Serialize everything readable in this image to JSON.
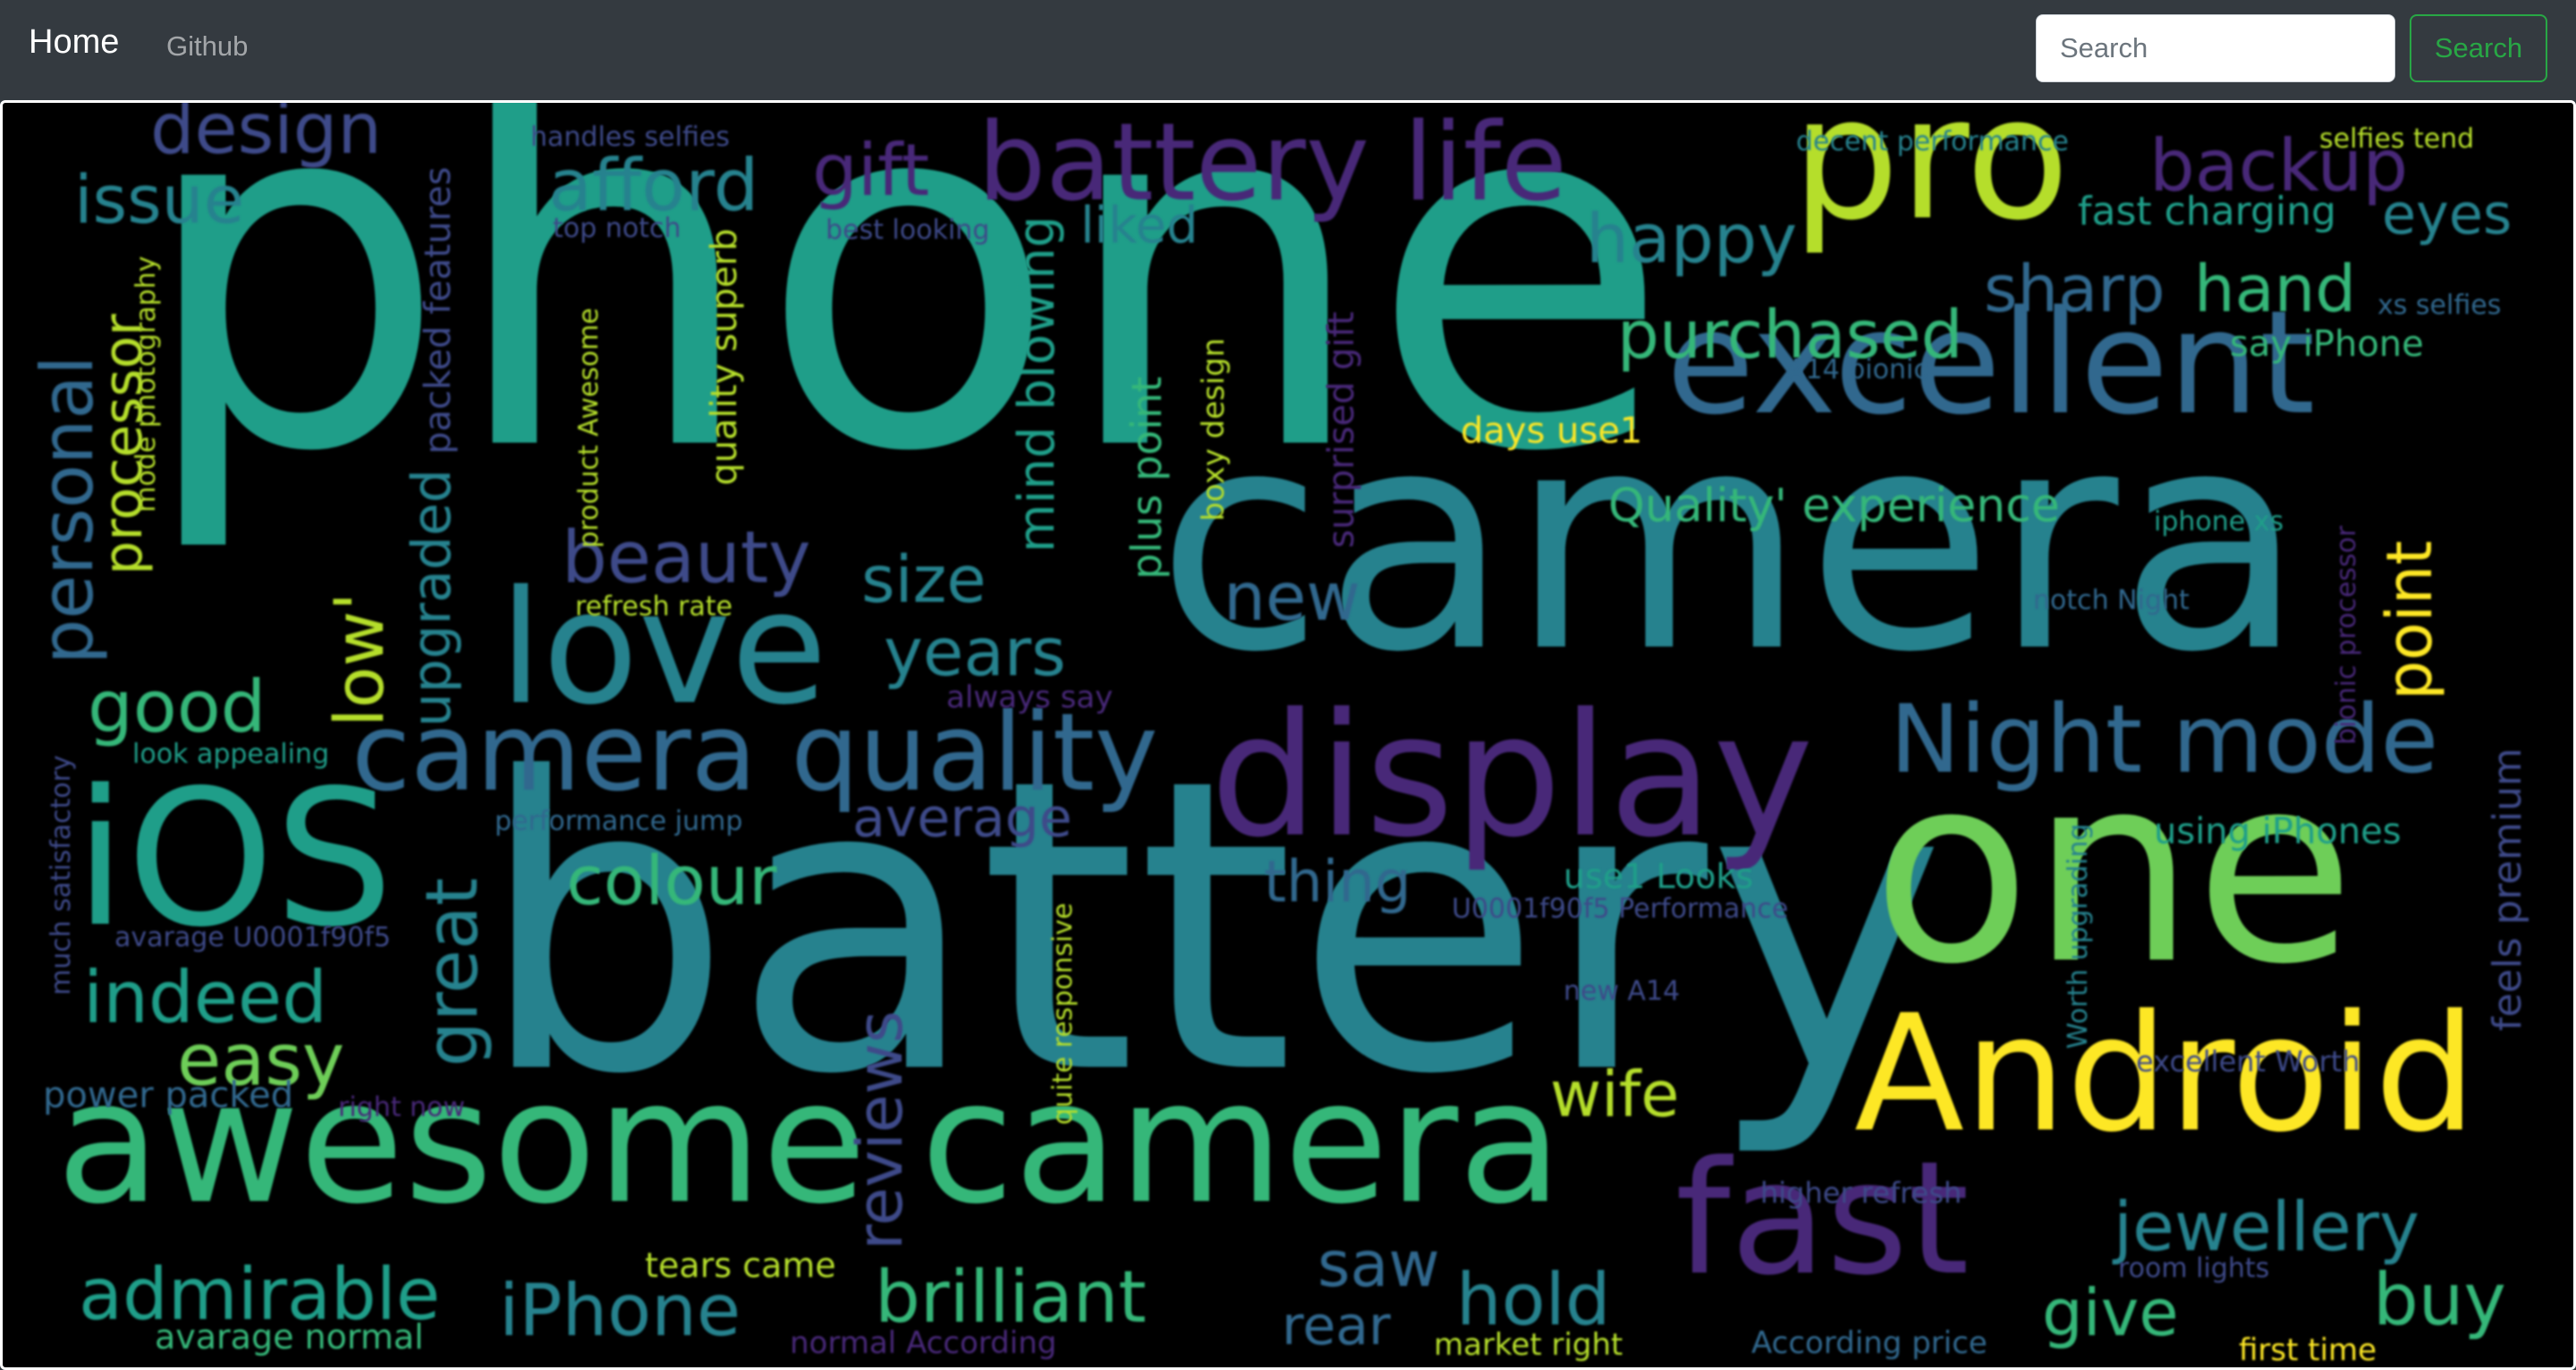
{
  "navbar": {
    "brand": "Home",
    "links": [
      "Github"
    ],
    "search": {
      "placeholder": "Search",
      "value": "",
      "button_label": "Search"
    }
  },
  "wordcloud": {
    "colors": {
      "purple": "#482878",
      "indigo": "#3e4a89",
      "blue": "#31688e",
      "teal": "#26828e",
      "green_teal": "#1f9e89",
      "green": "#35b779",
      "lime": "#6ece58",
      "yellow_green": "#b5de2b",
      "yellow": "#fde725"
    },
    "words": [
      {
        "text": "phone",
        "color": "green_teal",
        "rotate": false
      },
      {
        "text": "battery",
        "color": "teal",
        "rotate": false
      },
      {
        "text": "camera",
        "color": "teal",
        "rotate": false
      },
      {
        "text": "one",
        "color": "lime",
        "rotate": false
      },
      {
        "text": "awesome camera",
        "color": "green",
        "rotate": false
      },
      {
        "text": "display",
        "color": "purple",
        "rotate": false
      },
      {
        "text": "excellent",
        "color": "blue",
        "rotate": false
      },
      {
        "text": "Android",
        "color": "yellow",
        "rotate": false
      },
      {
        "text": "pro",
        "color": "yellow_green",
        "rotate": false
      },
      {
        "text": "love",
        "color": "teal",
        "rotate": false
      },
      {
        "text": "iOS",
        "color": "green_teal",
        "rotate": false
      },
      {
        "text": "fast",
        "color": "purple",
        "rotate": false
      },
      {
        "text": "battery life",
        "color": "purple",
        "rotate": false
      },
      {
        "text": "camera quality",
        "color": "blue",
        "rotate": false
      },
      {
        "text": "Night mode",
        "color": "blue",
        "rotate": false
      },
      {
        "text": "afford",
        "color": "teal",
        "rotate": false
      },
      {
        "text": "gift",
        "color": "purple",
        "rotate": false
      },
      {
        "text": "backup",
        "color": "purple",
        "rotate": false
      },
      {
        "text": "design",
        "color": "indigo",
        "rotate": false
      },
      {
        "text": "issue",
        "color": "teal",
        "rotate": false
      },
      {
        "text": "happy",
        "color": "teal",
        "rotate": false
      },
      {
        "text": "purchased",
        "color": "green",
        "rotate": false
      },
      {
        "text": "sharp",
        "color": "blue",
        "rotate": false
      },
      {
        "text": "hand",
        "color": "green",
        "rotate": false
      },
      {
        "text": "eyes",
        "color": "teal",
        "rotate": false
      },
      {
        "text": "fast charging",
        "color": "green_teal",
        "rotate": false
      },
      {
        "text": "liked",
        "color": "teal",
        "rotate": false
      },
      {
        "text": "beauty",
        "color": "indigo",
        "rotate": false
      },
      {
        "text": "size",
        "color": "teal",
        "rotate": false
      },
      {
        "text": "new",
        "color": "blue",
        "rotate": false
      },
      {
        "text": "years",
        "color": "teal",
        "rotate": false
      },
      {
        "text": "good",
        "color": "green",
        "rotate": false
      },
      {
        "text": "colour",
        "color": "green",
        "rotate": false
      },
      {
        "text": "average",
        "color": "indigo",
        "rotate": false
      },
      {
        "text": "thing",
        "color": "blue",
        "rotate": false
      },
      {
        "text": "indeed",
        "color": "green_teal",
        "rotate": false
      },
      {
        "text": "easy",
        "color": "lime",
        "rotate": false
      },
      {
        "text": "admirable",
        "color": "green_teal",
        "rotate": false
      },
      {
        "text": "iPhone",
        "color": "teal",
        "rotate": false
      },
      {
        "text": "brilliant",
        "color": "green",
        "rotate": false
      },
      {
        "text": "saw",
        "color": "blue",
        "rotate": false
      },
      {
        "text": "rear",
        "color": "blue",
        "rotate": false
      },
      {
        "text": "hold",
        "color": "teal",
        "rotate": false
      },
      {
        "text": "give",
        "color": "green",
        "rotate": false
      },
      {
        "text": "buy",
        "color": "green",
        "rotate": false
      },
      {
        "text": "jewellery",
        "color": "teal",
        "rotate": false
      },
      {
        "text": "wife",
        "color": "yellow_green",
        "rotate": false
      },
      {
        "text": "Quality' experience",
        "color": "green",
        "rotate": false
      },
      {
        "text": "say iPhone",
        "color": "green",
        "rotate": false
      },
      {
        "text": "using iPhones",
        "color": "green_teal",
        "rotate": false
      },
      {
        "text": "power packed",
        "color": "blue",
        "rotate": false
      },
      {
        "text": "days use1",
        "color": "yellow",
        "rotate": false
      },
      {
        "text": "use1 Looks",
        "color": "green_teal",
        "rotate": false
      },
      {
        "text": "tears came",
        "color": "yellow_green",
        "rotate": false
      },
      {
        "text": "avarage normal",
        "color": "green",
        "rotate": false
      },
      {
        "text": "normal According",
        "color": "purple",
        "rotate": false
      },
      {
        "text": "market right",
        "color": "yellow_green",
        "rotate": false
      },
      {
        "text": "According price",
        "color": "blue",
        "rotate": false
      },
      {
        "text": "first time",
        "color": "yellow",
        "rotate": false
      },
      {
        "text": "room lights",
        "color": "indigo",
        "rotate": false
      },
      {
        "text": "higher refresh",
        "color": "indigo",
        "rotate": false
      },
      {
        "text": "excellent Worth",
        "color": "indigo",
        "rotate": false
      },
      {
        "text": "new A14",
        "color": "indigo",
        "rotate": false
      },
      {
        "text": "U0001f90f5 Performance",
        "color": "indigo",
        "rotate": false
      },
      {
        "text": "avarage U0001f90f5",
        "color": "indigo",
        "rotate": false
      },
      {
        "text": "performance jump",
        "color": "blue",
        "rotate": false
      },
      {
        "text": "look appealing",
        "color": "green_teal",
        "rotate": false
      },
      {
        "text": "always say",
        "color": "purple",
        "rotate": false
      },
      {
        "text": "refresh rate",
        "color": "yellow_green",
        "rotate": false
      },
      {
        "text": "right now",
        "color": "purple",
        "rotate": false
      },
      {
        "text": "handles selfies",
        "color": "indigo",
        "rotate": false
      },
      {
        "text": "top notch",
        "color": "indigo",
        "rotate": false
      },
      {
        "text": "best looking",
        "color": "indigo",
        "rotate": false
      },
      {
        "text": "decent performance",
        "color": "teal",
        "rotate": false
      },
      {
        "text": "selfies tend",
        "color": "yellow_green",
        "rotate": false
      },
      {
        "text": "xs selfies",
        "color": "blue",
        "rotate": false
      },
      {
        "text": "A14 bionic",
        "color": "blue",
        "rotate": false
      },
      {
        "text": "iphone xs",
        "color": "green_teal",
        "rotate": false
      },
      {
        "text": "notch Night",
        "color": "blue",
        "rotate": false
      },
      {
        "text": "personal",
        "color": "blue",
        "rotate": true
      },
      {
        "text": "processor",
        "color": "yellow_green",
        "rotate": true
      },
      {
        "text": "mode photography",
        "color": "yellow_green",
        "rotate": true
      },
      {
        "text": "low'",
        "color": "yellow_green",
        "rotate": true
      },
      {
        "text": "upgraded",
        "color": "teal",
        "rotate": true
      },
      {
        "text": "packed features",
        "color": "indigo",
        "rotate": true
      },
      {
        "text": "great",
        "color": "teal",
        "rotate": true
      },
      {
        "text": "product Awesome",
        "color": "yellow_green",
        "rotate": true
      },
      {
        "text": "quality superb",
        "color": "yellow_green",
        "rotate": true
      },
      {
        "text": "mind blowing",
        "color": "green_teal",
        "rotate": true
      },
      {
        "text": "plus point",
        "color": "green",
        "rotate": true
      },
      {
        "text": "boxy design",
        "color": "yellow_green",
        "rotate": true
      },
      {
        "text": "surprised gift",
        "color": "purple",
        "rotate": true
      },
      {
        "text": "reviews",
        "color": "indigo",
        "rotate": true
      },
      {
        "text": "quite responsive",
        "color": "yellow_green",
        "rotate": true
      },
      {
        "text": "point",
        "color": "yellow",
        "rotate": true
      },
      {
        "text": "bionic processor",
        "color": "purple",
        "rotate": true
      },
      {
        "text": "feels premium",
        "color": "indigo",
        "rotate": true
      },
      {
        "text": "Worth upgrading",
        "color": "teal",
        "rotate": true
      },
      {
        "text": "much satisfactory",
        "color": "indigo",
        "rotate": true
      }
    ]
  }
}
